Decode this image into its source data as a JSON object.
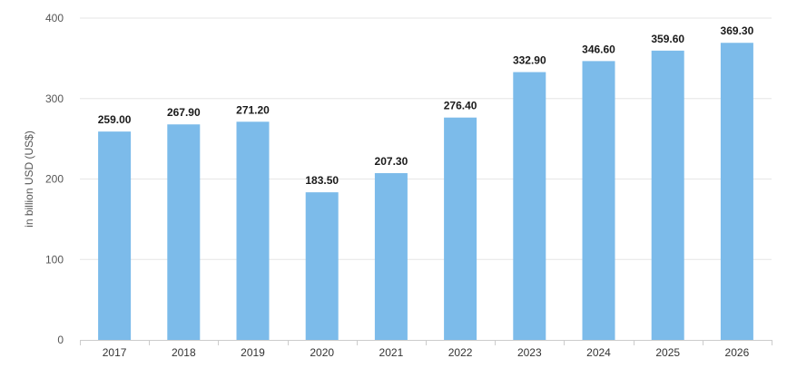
{
  "chart_data": {
    "type": "bar",
    "title": "",
    "xlabel": "",
    "ylabel": "in billion USD (US$)",
    "ylim": [
      0,
      400
    ],
    "yticks": [
      0,
      100,
      200,
      300,
      400
    ],
    "categories": [
      "2017",
      "2018",
      "2019",
      "2020",
      "2021",
      "2022",
      "2023",
      "2024",
      "2025",
      "2026"
    ],
    "values": [
      259.0,
      267.9,
      271.2,
      183.5,
      207.3,
      276.4,
      332.9,
      346.6,
      359.6,
      369.3
    ],
    "data_labels": [
      "259.00",
      "267.90",
      "271.20",
      "183.50",
      "207.30",
      "276.40",
      "332.90",
      "346.60",
      "359.60",
      "369.30"
    ],
    "bar_color": "#7cbbea",
    "grid": true,
    "legend": "none"
  }
}
